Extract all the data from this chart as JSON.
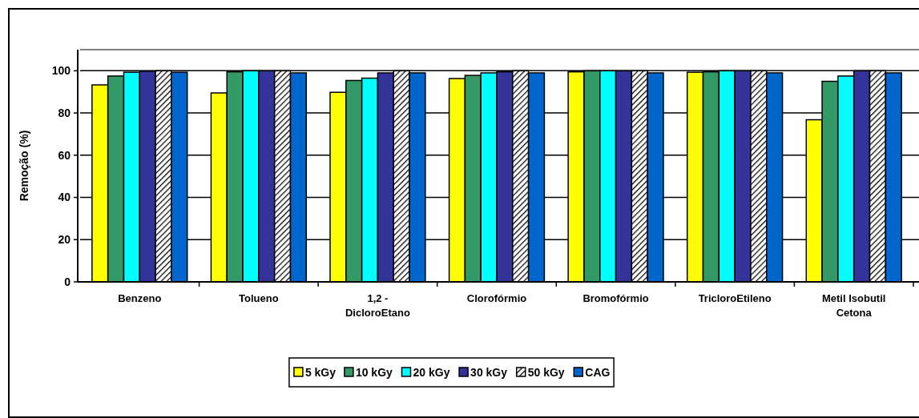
{
  "chart_data": {
    "type": "bar",
    "ylabel": "Remoção (%)",
    "categories": [
      "Benzeno",
      "Tolueno",
      "1,2 - DicloroEtano",
      "Clorofórmio",
      "Bromofórmio",
      "TricloroEtileno",
      "Metil Isobutil Cetona"
    ],
    "series": [
      {
        "name": "5 kGy",
        "color": "#ffff00",
        "values": [
          93.3,
          89.5,
          89.8,
          96.3,
          99.5,
          99.3,
          76.8
        ]
      },
      {
        "name": "10 kGy",
        "color": "#339966",
        "values": [
          97.5,
          99.5,
          95.4,
          97.8,
          100,
          99.5,
          95
        ]
      },
      {
        "name": "20 kGy",
        "color": "#00ffff",
        "values": [
          99.3,
          100,
          96.5,
          99,
          100,
          100,
          97.5
        ]
      },
      {
        "name": "30 kGy",
        "color": "#333399",
        "values": [
          99.8,
          100,
          99,
          99.5,
          100,
          100,
          100
        ]
      },
      {
        "name": "50 kGy",
        "color": "#000000",
        "values": [
          100,
          100,
          100,
          100,
          100,
          100,
          100
        ]
      },
      {
        "name": "CAG",
        "color": "#0066cc",
        "values": [
          99.3,
          99,
          99,
          99,
          99,
          99,
          99
        ]
      }
    ],
    "ylim": [
      0,
      110
    ],
    "yticks": [
      0,
      20,
      40,
      60,
      80,
      100
    ],
    "grid": "y",
    "legend": "bottom"
  }
}
